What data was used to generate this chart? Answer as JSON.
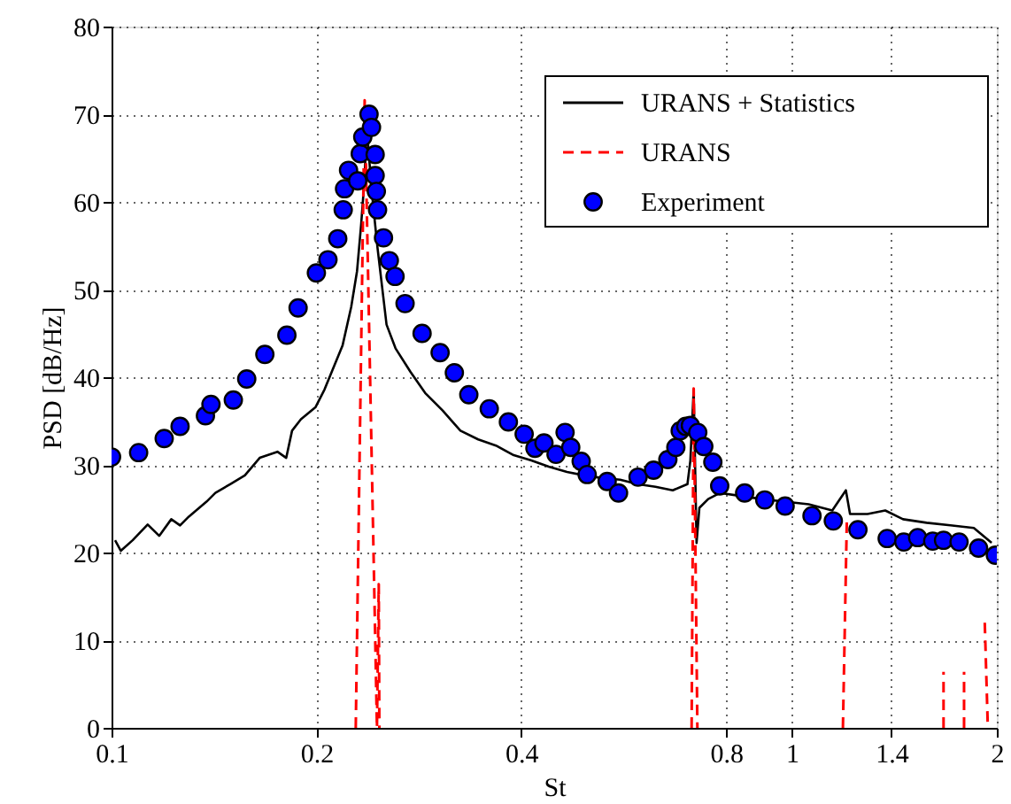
{
  "chart_data": {
    "type": "line",
    "xlabel": "St",
    "ylabel": "PSD [dB/Hz]",
    "log": "x",
    "xlim": [
      0.1,
      2
    ],
    "xticks": [
      0.1,
      0.2,
      0.4,
      0.8,
      1,
      1.4,
      2
    ],
    "ylim": [
      0,
      80
    ],
    "yticks": [
      0,
      10,
      20,
      30,
      40,
      50,
      60,
      70,
      80
    ],
    "grid": true,
    "legend": "top right",
    "series": [
      {
        "name": "URANS + Statistics",
        "line_style": "solid",
        "marker": "none",
        "color": "#000000",
        "x": [
          0.1012,
          0.1032,
          0.1074,
          0.113,
          0.1175,
          0.1224,
          0.1261,
          0.1299,
          0.1379,
          0.1421,
          0.1494,
          0.157,
          0.1651,
          0.1753,
          0.1806,
          0.1842,
          0.1898,
          0.1995,
          0.2056,
          0.2185,
          0.225,
          0.2295,
          0.2327,
          0.2355,
          0.237,
          0.241,
          0.246,
          0.2536,
          0.2614,
          0.275,
          0.289,
          0.3066,
          0.3256,
          0.3458,
          0.3672,
          0.39,
          0.414,
          0.439,
          0.467,
          0.495,
          0.526,
          0.559,
          0.593,
          0.63,
          0.668,
          0.702,
          0.709,
          0.717,
          0.724,
          0.731,
          0.753,
          0.784,
          0.832,
          0.902,
          0.976,
          1.058,
          1.146,
          1.2,
          1.217,
          1.291,
          1.371,
          1.456,
          1.577,
          1.709,
          1.85,
          1.965
        ],
        "values": [
          21.4,
          20.2,
          21.4,
          23.2,
          21.9,
          23.8,
          23.1,
          24.1,
          25.8,
          26.8,
          27.8,
          28.8,
          30.8,
          31.5,
          30.8,
          33.9,
          35.2,
          36.6,
          38.6,
          43.6,
          48.0,
          52.1,
          57.4,
          62.8,
          68.9,
          61.5,
          54.7,
          46.0,
          43.3,
          40.6,
          38.2,
          36.2,
          33.9,
          32.9,
          32.2,
          31.1,
          30.5,
          29.8,
          29.2,
          28.8,
          28.5,
          28.3,
          27.8,
          27.5,
          27.1,
          27.8,
          30.5,
          38.6,
          21.1,
          25.1,
          26.1,
          26.8,
          26.5,
          26.1,
          25.8,
          25.5,
          24.8,
          27.1,
          24.4,
          24.4,
          24.8,
          23.8,
          23.4,
          23.1,
          22.8,
          21.1
        ]
      },
      {
        "name": "URANS",
        "type": "line",
        "line_style": "dashed",
        "marker": "none",
        "color": "#ff0000",
        "x": [
          0.2285,
          0.2355,
          0.2455,
          0.247,
          0.2475,
          0.3,
          0.712,
          0.717,
          0.726,
          0.8,
          1.188,
          1.204,
          1.5,
          1.67,
          1.67,
          1.72,
          1.79,
          1.79,
          1.85,
          1.92,
          1.94
        ],
        "values": [
          0,
          71.6,
          0,
          16.4,
          0,
          null,
          0,
          38.7,
          0,
          null,
          0,
          23.8,
          null,
          0,
          6.4,
          null,
          0,
          6.4,
          null,
          12.0,
          0
        ]
      },
      {
        "name": "Experiment",
        "type": "scatter",
        "marker": "circle",
        "color": "#0000ff",
        "x": [
          0.1,
          0.1096,
          0.1195,
          0.1261,
          0.1374,
          0.14,
          0.151,
          0.158,
          0.168,
          0.181,
          0.188,
          0.2,
          0.208,
          0.215,
          0.219,
          0.22,
          0.223,
          0.23,
          0.232,
          0.234,
          0.239,
          0.241,
          0.244,
          0.244,
          0.245,
          0.246,
          0.251,
          0.256,
          0.261,
          0.27,
          0.286,
          0.304,
          0.319,
          0.335,
          0.359,
          0.383,
          0.404,
          0.419,
          0.432,
          0.45,
          0.464,
          0.473,
          0.49,
          0.5,
          0.535,
          0.556,
          0.594,
          0.626,
          0.657,
          0.675,
          0.685,
          0.698,
          0.709,
          0.727,
          0.742,
          0.765,
          0.783,
          0.852,
          0.912,
          0.977,
          1.07,
          1.15,
          1.25,
          1.38,
          1.46,
          1.53,
          1.61,
          1.67,
          1.76,
          1.88,
          1.99
        ],
        "values": [
          30.9,
          31.4,
          33.0,
          34.4,
          35.6,
          36.9,
          37.4,
          39.8,
          42.6,
          44.8,
          47.9,
          51.9,
          53.4,
          55.8,
          59.1,
          61.5,
          63.6,
          62.4,
          65.5,
          67.4,
          70.0,
          68.5,
          65.4,
          63.0,
          61.2,
          59.1,
          55.9,
          53.3,
          51.5,
          48.4,
          45.0,
          42.8,
          40.5,
          38.0,
          36.4,
          34.9,
          33.5,
          31.9,
          32.5,
          31.2,
          33.7,
          32.0,
          30.4,
          28.9,
          28.1,
          26.8,
          28.6,
          29.4,
          30.6,
          32.0,
          33.9,
          34.4,
          34.5,
          33.7,
          32.1,
          30.3,
          27.6,
          26.8,
          26.0,
          25.3,
          24.2,
          23.6,
          22.6,
          21.6,
          21.2,
          21.7,
          21.3,
          21.4,
          21.2,
          20.5,
          19.7
        ]
      }
    ]
  }
}
